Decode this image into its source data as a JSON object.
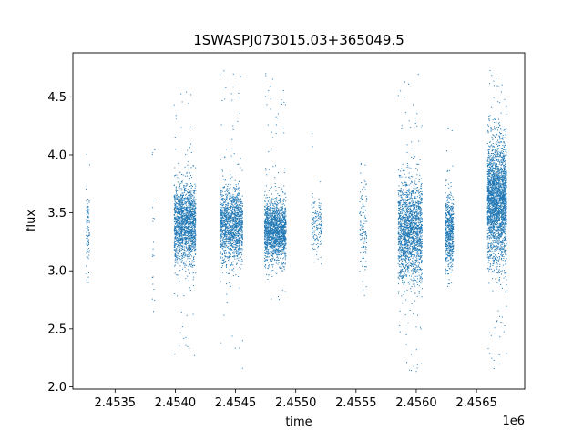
{
  "chart_data": {
    "type": "scatter",
    "title": "1SWASPJ073015.03+365049.5",
    "xlabel": "time",
    "ylabel": "flux",
    "x_offset_label": "1e6",
    "xlim": [
      2453150,
      2456900
    ],
    "ylim": [
      1.98,
      4.88
    ],
    "x_ticks": [
      2453500,
      2454000,
      2454500,
      2455000,
      2455500,
      2456000,
      2456500
    ],
    "x_tick_labels": [
      "2.4535",
      "2.4540",
      "2.4545",
      "2.4550",
      "2.4555",
      "2.4560",
      "2.4565"
    ],
    "y_ticks": [
      2.0,
      2.5,
      3.0,
      3.5,
      4.0,
      4.5
    ],
    "y_tick_labels": [
      "2.0",
      "2.5",
      "3.0",
      "3.5",
      "4.0",
      "4.5"
    ],
    "marker_color": "#1f77b4",
    "grid": false,
    "legend": "none",
    "clusters": [
      {
        "time_start": 2453260,
        "time_end": 2453290,
        "flux_center": 3.35,
        "flux_spread": 0.22,
        "flux_min": 2.9,
        "flux_max": 4.2,
        "n_points": 90
      },
      {
        "time_start": 2453810,
        "time_end": 2453830,
        "flux_center": 3.3,
        "flux_spread": 0.3,
        "flux_min": 2.65,
        "flux_max": 4.05,
        "n_points": 20
      },
      {
        "time_start": 2453990,
        "time_end": 2454170,
        "flux_center": 3.4,
        "flux_spread": 0.17,
        "flux_min": 2.12,
        "flux_max": 4.68,
        "n_points": 1700
      },
      {
        "time_start": 2454370,
        "time_end": 2454560,
        "flux_center": 3.4,
        "flux_spread": 0.16,
        "flux_min": 2.12,
        "flux_max": 4.78,
        "n_points": 1500
      },
      {
        "time_start": 2454740,
        "time_end": 2454920,
        "flux_center": 3.35,
        "flux_spread": 0.13,
        "flux_min": 2.75,
        "flux_max": 4.72,
        "n_points": 1700
      },
      {
        "time_start": 2455130,
        "time_end": 2455220,
        "flux_center": 3.4,
        "flux_spread": 0.12,
        "flux_min": 2.75,
        "flux_max": 4.3,
        "n_points": 160
      },
      {
        "time_start": 2455530,
        "time_end": 2455590,
        "flux_center": 3.35,
        "flux_spread": 0.18,
        "flux_min": 2.7,
        "flux_max": 3.95,
        "n_points": 120
      },
      {
        "time_start": 2455850,
        "time_end": 2456050,
        "flux_center": 3.35,
        "flux_spread": 0.22,
        "flux_min": 2.12,
        "flux_max": 4.75,
        "n_points": 1800
      },
      {
        "time_start": 2456240,
        "time_end": 2456310,
        "flux_center": 3.35,
        "flux_spread": 0.15,
        "flux_min": 2.75,
        "flux_max": 4.28,
        "n_points": 600
      },
      {
        "time_start": 2456590,
        "time_end": 2456750,
        "flux_center": 3.6,
        "flux_spread": 0.25,
        "flux_min": 2.15,
        "flux_max": 4.75,
        "n_points": 2600
      }
    ]
  }
}
